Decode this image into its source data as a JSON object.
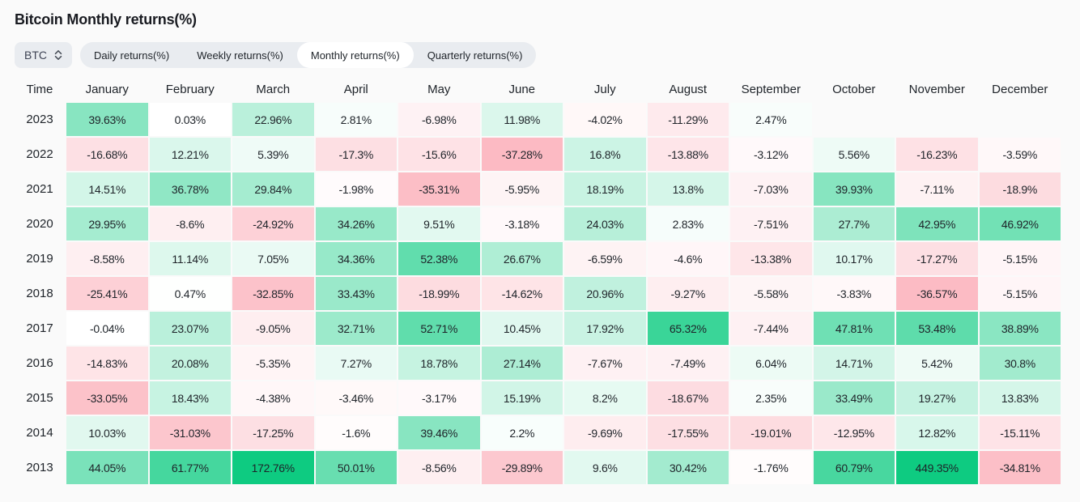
{
  "page": {
    "title": "Bitcoin Monthly returns(%)"
  },
  "controls": {
    "symbol_select": {
      "value": "BTC",
      "icon": "updown-chevron-icon"
    },
    "tabs": [
      {
        "label": "Daily returns(%)",
        "active": false
      },
      {
        "label": "Weekly returns(%)",
        "active": false
      },
      {
        "label": "Monthly returns(%)",
        "active": true
      },
      {
        "label": "Quarterly returns(%)",
        "active": false
      }
    ]
  },
  "colors": {
    "page_bg": "#FAFAFA",
    "control_bg": "#E9ECF0",
    "active_tab_bg": "#FFFFFF",
    "text": "#1E2329",
    "positive_base": "#0ECB81",
    "negative_base": "#F6465D",
    "positive_cap": 80,
    "negative_cap": 100
  },
  "chart_data": {
    "type": "heatmap",
    "title": "Bitcoin Monthly returns(%)",
    "unit": "%",
    "time_header": "Time",
    "x_labels": [
      "January",
      "February",
      "March",
      "April",
      "May",
      "June",
      "July",
      "August",
      "September",
      "October",
      "November",
      "December"
    ],
    "y_labels": [
      "2023",
      "2022",
      "2021",
      "2020",
      "2019",
      "2018",
      "2017",
      "2016",
      "2015",
      "2014",
      "2013"
    ],
    "legend_position": "none",
    "color_positive": "#0ECB81",
    "color_negative": "#F6465D",
    "series": [
      {
        "year": "2023",
        "values": [
          39.63,
          0.03,
          22.96,
          2.81,
          -6.98,
          11.98,
          -4.02,
          -11.29,
          2.47,
          null,
          null,
          null
        ]
      },
      {
        "year": "2022",
        "values": [
          -16.68,
          12.21,
          5.39,
          -17.3,
          -15.6,
          -37.28,
          16.8,
          -13.88,
          -3.12,
          5.56,
          -16.23,
          -3.59
        ]
      },
      {
        "year": "2021",
        "values": [
          14.51,
          36.78,
          29.84,
          -1.98,
          -35.31,
          -5.95,
          18.19,
          13.8,
          -7.03,
          39.93,
          -7.11,
          -18.9
        ]
      },
      {
        "year": "2020",
        "values": [
          29.95,
          -8.6,
          -24.92,
          34.26,
          9.51,
          -3.18,
          24.03,
          2.83,
          -7.51,
          27.7,
          42.95,
          46.92
        ]
      },
      {
        "year": "2019",
        "values": [
          -8.58,
          11.14,
          7.05,
          34.36,
          52.38,
          26.67,
          -6.59,
          -4.6,
          -13.38,
          10.17,
          -17.27,
          -5.15
        ]
      },
      {
        "year": "2018",
        "values": [
          -25.41,
          0.47,
          -32.85,
          33.43,
          -18.99,
          -14.62,
          20.96,
          -9.27,
          -5.58,
          -3.83,
          -36.57,
          -5.15
        ]
      },
      {
        "year": "2017",
        "values": [
          -0.04,
          23.07,
          -9.05,
          32.71,
          52.71,
          10.45,
          17.92,
          65.32,
          -7.44,
          47.81,
          53.48,
          38.89
        ]
      },
      {
        "year": "2016",
        "values": [
          -14.83,
          20.08,
          -5.35,
          7.27,
          18.78,
          27.14,
          -7.67,
          -7.49,
          6.04,
          14.71,
          5.42,
          30.8
        ]
      },
      {
        "year": "2015",
        "values": [
          -33.05,
          18.43,
          -4.38,
          -3.46,
          -3.17,
          15.19,
          8.2,
          -18.67,
          2.35,
          33.49,
          19.27,
          13.83
        ]
      },
      {
        "year": "2014",
        "values": [
          10.03,
          -31.03,
          -17.25,
          -1.6,
          39.46,
          2.2,
          -9.69,
          -17.55,
          -19.01,
          -12.95,
          12.82,
          -15.11
        ]
      },
      {
        "year": "2013",
        "values": [
          44.05,
          61.77,
          172.76,
          50.01,
          -8.56,
          -29.89,
          9.6,
          30.42,
          -1.76,
          60.79,
          449.35,
          -34.81
        ]
      }
    ]
  }
}
